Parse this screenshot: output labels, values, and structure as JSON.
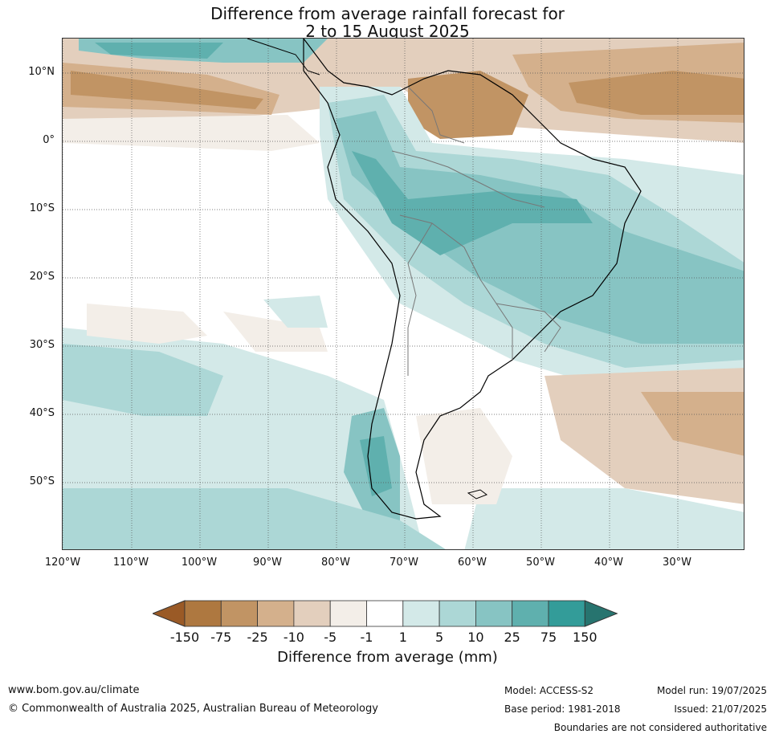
{
  "title": {
    "line1": "Difference from average rainfall forecast for",
    "line2": "2 to 15 August 2025"
  },
  "axes": {
    "lat_labels": [
      "10°N",
      "0°",
      "10°S",
      "20°S",
      "30°S",
      "40°S",
      "50°S"
    ],
    "lon_labels": [
      "120°W",
      "110°W",
      "100°W",
      "90°W",
      "80°W",
      "70°W",
      "60°W",
      "50°W",
      "40°W",
      "30°W"
    ],
    "lon_range": [
      -120,
      -20
    ],
    "lat_range": [
      -60,
      15
    ]
  },
  "legend": {
    "title": "Difference from average (mm)",
    "ticks": [
      "-150",
      "-75",
      "-25",
      "-10",
      "-5",
      "-1",
      "1",
      "5",
      "10",
      "25",
      "75",
      "150"
    ],
    "colors": [
      "#9a5a26",
      "#ae7840",
      "#c19464",
      "#d4b08c",
      "#e3cfbd",
      "#f3eee8",
      "#ffffff",
      "#d3e9e8",
      "#acd7d6",
      "#87c4c3",
      "#5fb0ae",
      "#339c99",
      "#27746f"
    ]
  },
  "footer": {
    "website": "www.bom.gov.au/climate",
    "copyright": "© Commonwealth of Australia 2025, Australian Bureau of Meteorology",
    "model": "Model: ACCESS-S2",
    "base_period": "Base period: 1981-2018",
    "model_run": "Model run: 19/07/2025",
    "issued": "Issued: 21/07/2025",
    "disclaimer": "Boundaries are not considered authoritative"
  }
}
